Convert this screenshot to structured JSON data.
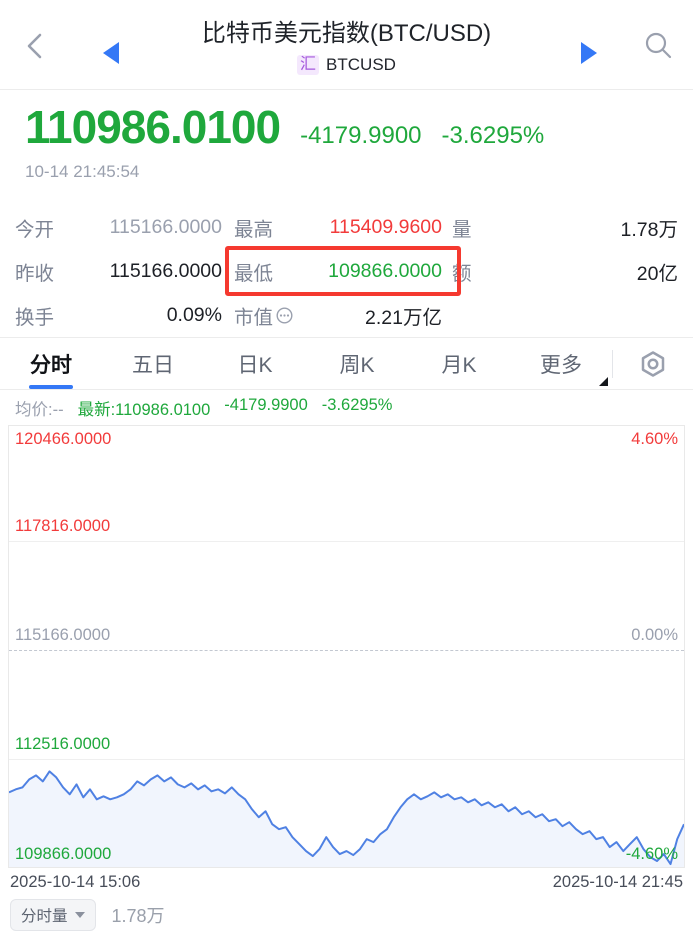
{
  "colors": {
    "green": "#1fa83c",
    "red": "#f23b3b",
    "blue": "#3478f6",
    "line-blue": "#4f81e3",
    "highlight": "#f5392f"
  },
  "header": {
    "title": "比特币美元指数(BTC/USD)",
    "market_badge": "汇",
    "symbol": "BTCUSD"
  },
  "quote": {
    "price": "110986.0100",
    "change": "-4179.9900",
    "change_pct": "-3.6295%",
    "timestamp": "10-14 21:45:54",
    "avg_label": "均价:--",
    "latest": "最新:110986.0100",
    "latest_change": "-4179.9900",
    "latest_pct": "-3.6295%"
  },
  "stats": {
    "rows": [
      [
        {
          "label": "今开",
          "value": "115166.0000"
        },
        {
          "label": "最高",
          "value": "115409.9600"
        },
        {
          "label": "量",
          "value": "1.78万"
        }
      ],
      [
        {
          "label": "昨收",
          "value": "115166.0000"
        },
        {
          "label": "最低",
          "value": "109866.0000"
        },
        {
          "label": "额",
          "value": "20亿"
        }
      ],
      [
        {
          "label": "换手",
          "value": "0.09%"
        },
        {
          "label": "市值",
          "value": "2.21万亿"
        },
        {
          "label": "",
          "value": ""
        }
      ]
    ]
  },
  "tabs": {
    "items": [
      "分时",
      "五日",
      "日K",
      "周K",
      "月K",
      "更多"
    ],
    "active": "分时"
  },
  "chart_data": {
    "type": "line",
    "title": "BTC/USD 分时图 (intraday)",
    "x_start_label": "2025-10-14 15:06",
    "x_end_label": "2025-10-14 21:45",
    "ylim": [
      109866,
      120466
    ],
    "baseline_value": 115166,
    "grid": "horizontal",
    "legend_position": "none",
    "y_axis_labels": [
      {
        "value": "120466.0000",
        "pct": "4.60%"
      },
      {
        "value": "117816.0000",
        "pct": ""
      },
      {
        "value": "115166.0000",
        "pct": "0.00%"
      },
      {
        "value": "112516.0000",
        "pct": ""
      },
      {
        "value": "109866.0000",
        "pct": "-4.60%"
      }
    ],
    "series": [
      {
        "name": "price",
        "values": [
          111660,
          111732,
          111780,
          111972,
          112067,
          111924,
          112163,
          112019,
          111780,
          111613,
          111852,
          111541,
          111732,
          111493,
          111565,
          111493,
          111541,
          111613,
          111732,
          111924,
          111828,
          111972,
          112067,
          111924,
          112019,
          111852,
          111780,
          111876,
          111732,
          111828,
          111684,
          111732,
          111637,
          111780,
          111613,
          111493,
          111254,
          111062,
          111206,
          110895,
          110775,
          110823,
          110584,
          110416,
          110249,
          110129,
          110297,
          110584,
          110344,
          110177,
          110249,
          110153,
          110297,
          110536,
          110464,
          110655,
          110775,
          111062,
          111302,
          111493,
          111613,
          111493,
          111565,
          111660,
          111541,
          111613,
          111493,
          111541,
          111421,
          111493,
          111349,
          111421,
          111302,
          111373,
          111206,
          111302,
          111134,
          111206,
          111062,
          111134,
          110967,
          111014,
          110847,
          110943,
          110775,
          110655,
          110727,
          110536,
          110584,
          110344,
          110464,
          110249,
          110416,
          110584,
          110297,
          110105,
          110009,
          110177,
          109938,
          110536,
          110895
        ]
      }
    ]
  },
  "bottom": {
    "volume_selector": "分时量",
    "volume_value": "1.78万"
  }
}
